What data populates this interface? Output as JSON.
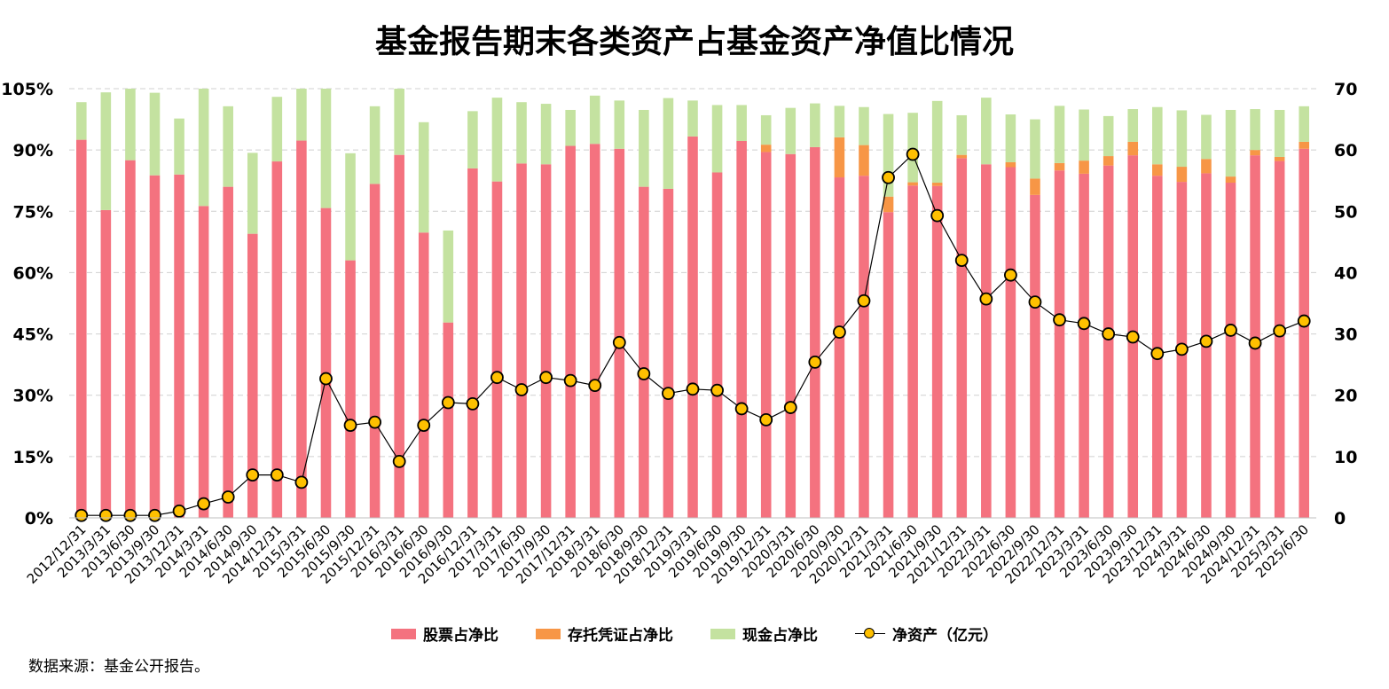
{
  "title": "基金报告期末各类资产占基金资产净值比情况",
  "source": "数据来源：基金公开报告。",
  "colors": {
    "stock": "#F4727F",
    "depositary": "#F79646",
    "cash": "#C4E2A0",
    "line": "#000000",
    "marker": "#FFC000",
    "grid": "#D0D0D0"
  },
  "chart_data": {
    "type": "bar",
    "stacked": true,
    "categories": [
      "2012/12/31",
      "2013/3/31",
      "2013/6/30",
      "2013/9/30",
      "2013/12/31",
      "2014/3/31",
      "2014/6/30",
      "2014/9/30",
      "2014/12/31",
      "2015/3/31",
      "2015/6/30",
      "2015/9/30",
      "2015/12/31",
      "2016/3/31",
      "2016/6/30",
      "2016/9/30",
      "2016/12/31",
      "2017/3/31",
      "2017/6/30",
      "2017/9/30",
      "2017/12/31",
      "2018/3/31",
      "2018/6/30",
      "2018/9/30",
      "2018/12/31",
      "2019/3/31",
      "2019/6/30",
      "2019/9/30",
      "2019/12/31",
      "2020/3/31",
      "2020/6/30",
      "2020/9/30",
      "2020/12/31",
      "2021/3/31",
      "2021/6/30",
      "2021/9/30",
      "2021/12/31",
      "2022/3/31",
      "2022/6/30",
      "2022/9/30",
      "2022/12/31",
      "2023/3/31",
      "2023/6/30",
      "2023/9/30",
      "2023/12/31",
      "2024/3/31",
      "2024/6/30",
      "2024/9/30",
      "2024/12/31",
      "2025/3/31",
      "2025/6/30"
    ],
    "series": [
      {
        "name": "股票占净比",
        "axis": "left",
        "values": [
          92.5,
          75.3,
          87.5,
          83.8,
          84.0,
          76.3,
          81.0,
          69.5,
          87.2,
          92.3,
          75.8,
          63.0,
          81.7,
          88.8,
          69.8,
          47.8,
          85.5,
          82.3,
          86.7,
          86.5,
          91.0,
          91.5,
          90.3,
          81.0,
          80.5,
          93.3,
          84.5,
          92.2,
          89.5,
          89.0,
          90.7,
          83.3,
          83.7,
          74.8,
          81.3,
          81.2,
          88.0,
          86.5,
          85.8,
          79.0,
          85.0,
          84.2,
          86.2,
          88.7,
          83.7,
          82.2,
          84.3,
          82.0,
          88.7,
          87.3,
          90.3
        ]
      },
      {
        "name": "存托凭证占净比",
        "axis": "left",
        "values": [
          0,
          0,
          0,
          0,
          0,
          0,
          0,
          0,
          0,
          0,
          0,
          0,
          0,
          0,
          0,
          0,
          0,
          0,
          0,
          0,
          0,
          0,
          0,
          0,
          0,
          0,
          0,
          0,
          1.8,
          0,
          0,
          9.8,
          7.5,
          3.8,
          0.8,
          0.8,
          0.8,
          0,
          1.2,
          4.0,
          1.8,
          3.2,
          2.3,
          3.3,
          2.8,
          3.7,
          3.5,
          1.5,
          1.3,
          1.0,
          1.7
        ]
      },
      {
        "name": "现金占净比",
        "axis": "left",
        "values": [
          9.2,
          28.8,
          17.5,
          20.2,
          13.7,
          28.7,
          19.7,
          19.8,
          15.8,
          12.7,
          29.2,
          26.2,
          19.0,
          16.2,
          27.0,
          22.5,
          14.0,
          20.5,
          15.0,
          14.8,
          8.8,
          11.8,
          11.8,
          18.8,
          22.2,
          8.8,
          16.5,
          8.8,
          7.2,
          11.3,
          10.7,
          7.7,
          9.3,
          20.2,
          17.0,
          20.0,
          9.7,
          16.3,
          11.7,
          14.5,
          14.0,
          12.5,
          9.8,
          8.0,
          14.0,
          13.8,
          10.8,
          16.3,
          10.0,
          11.5,
          8.7
        ]
      },
      {
        "name": "净资产（亿元）",
        "axis": "right",
        "type": "line",
        "values": [
          0.4,
          0.4,
          0.4,
          0.4,
          1.1,
          2.3,
          3.4,
          7.0,
          7.0,
          5.8,
          22.7,
          15.1,
          15.6,
          9.2,
          15.1,
          18.8,
          18.6,
          22.9,
          20.9,
          22.9,
          22.4,
          21.6,
          28.6,
          23.5,
          20.3,
          21.0,
          20.8,
          17.8,
          16.0,
          18.0,
          25.4,
          30.3,
          35.4,
          55.5,
          59.3,
          49.3,
          42.0,
          35.7,
          39.6,
          35.2,
          32.3,
          31.7,
          30.0,
          29.5,
          26.8,
          27.5,
          28.8,
          30.6,
          28.5,
          30.5,
          32.1
        ]
      }
    ],
    "y_left": {
      "ylim": [
        0,
        105
      ],
      "ticks": [
        "0%",
        "15%",
        "30%",
        "45%",
        "60%",
        "75%",
        "90%",
        "105%"
      ],
      "tick_values": [
        0,
        15,
        30,
        45,
        60,
        75,
        90,
        105
      ]
    },
    "y_right": {
      "ylim": [
        0,
        70
      ],
      "ticks": [
        "0",
        "10",
        "20",
        "30",
        "40",
        "50",
        "60",
        "70"
      ],
      "tick_values": [
        0,
        10,
        20,
        30,
        40,
        50,
        60,
        70
      ]
    },
    "grid": true,
    "legend_position": "bottom"
  }
}
